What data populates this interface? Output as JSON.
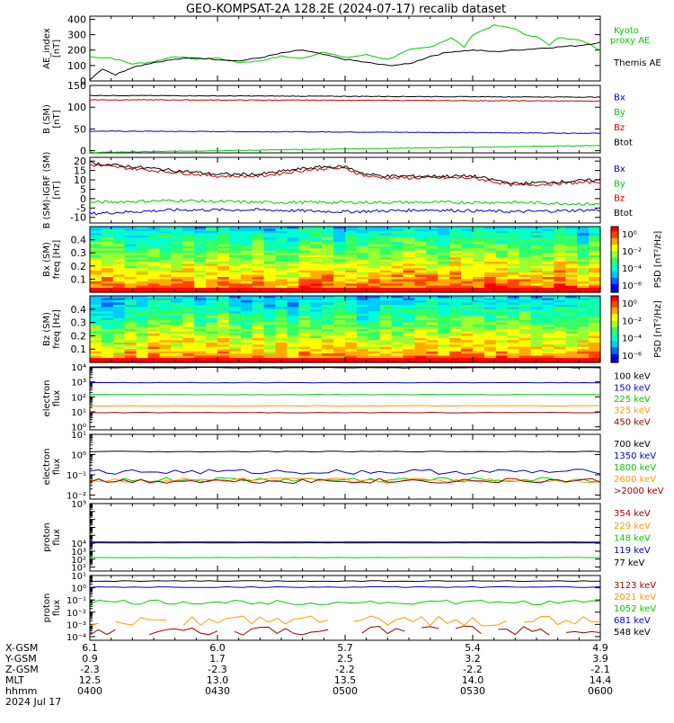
{
  "title": "GEO-KOMPSAT-2A 128.2E (2024-07-17) recalib dataset",
  "time_axis": {
    "row_labels": [
      "X-GSM",
      "Y-GSM",
      "Z-GSM",
      "MLT",
      "hhmm",
      "2024 Jul 17"
    ],
    "columns": [
      {
        "x": "6.1",
        "y": "0.9",
        "z": "-2.3",
        "mlt": "12.5",
        "hhmm": "0400"
      },
      {
        "x": "6.0",
        "y": "1.7",
        "z": "-2.3",
        "mlt": "13.0",
        "hhmm": "0430"
      },
      {
        "x": "5.7",
        "y": "2.5",
        "z": "-2.2",
        "mlt": "13.5",
        "hhmm": "0500"
      },
      {
        "x": "5.4",
        "y": "3.2",
        "z": "-2.2",
        "mlt": "14.0",
        "hhmm": "0530"
      },
      {
        "x": "4.9",
        "y": "3.9",
        "z": "-2.1",
        "mlt": "14.4",
        "hhmm": "0600"
      }
    ]
  },
  "chart_data": [
    {
      "id": "ae",
      "type": "line",
      "ylabel": [
        "AE_index",
        "[nT]"
      ],
      "ylim": [
        0,
        400
      ],
      "yticks": [
        "0",
        "100",
        "200",
        "300",
        "400"
      ],
      "yscale": "linear",
      "x_range_minutes": [
        0,
        120
      ],
      "series": [
        {
          "name": "Kyoto proxy AE",
          "color": "#00cc00",
          "x": [
            0,
            5,
            10,
            15,
            20,
            25,
            30,
            35,
            40,
            45,
            50,
            55,
            60,
            65,
            70,
            75,
            80,
            85,
            88,
            90,
            95,
            100,
            102,
            105,
            108,
            110,
            115,
            120
          ],
          "values": [
            155,
            150,
            110,
            125,
            160,
            140,
            150,
            120,
            130,
            160,
            145,
            190,
            150,
            170,
            140,
            200,
            220,
            280,
            220,
            300,
            360,
            340,
            300,
            290,
            230,
            280,
            270,
            200
          ]
        },
        {
          "name": "Themis AE",
          "color": "#000000",
          "x": [
            0,
            3,
            6,
            10,
            15,
            20,
            25,
            30,
            35,
            40,
            45,
            50,
            55,
            60,
            65,
            70,
            75,
            80,
            85,
            90,
            95,
            100,
            105,
            110,
            115,
            120
          ],
          "values": [
            10,
            80,
            40,
            90,
            120,
            140,
            150,
            140,
            130,
            150,
            180,
            200,
            170,
            140,
            120,
            100,
            110,
            160,
            190,
            200,
            190,
            200,
            210,
            220,
            230,
            250
          ]
        }
      ],
      "legend": [
        {
          "text": "Kyoto",
          "color": "#00cc00"
        },
        {
          "text": "proxy AE",
          "color": "#00cc00"
        },
        {
          "text": "Themis AE",
          "color": "#000000"
        }
      ]
    },
    {
      "id": "bsm",
      "type": "line",
      "ylabel": [
        "B (SM)",
        "[nT]"
      ],
      "ylim": [
        -5,
        150
      ],
      "yticks": [
        "0",
        "50",
        "100",
        "150"
      ],
      "ytick_values": [
        0,
        50,
        100,
        150
      ],
      "yscale": "linear",
      "series": [
        {
          "name": "Bx",
          "color": "#0000cc",
          "x": [
            0,
            60,
            120
          ],
          "values": [
            45,
            43,
            40
          ]
        },
        {
          "name": "By",
          "color": "#00cc00",
          "x": [
            0,
            60,
            120
          ],
          "values": [
            -4,
            4,
            12
          ]
        },
        {
          "name": "Bz",
          "color": "#cc0000",
          "x": [
            0,
            60,
            120
          ],
          "values": [
            117,
            116,
            114
          ]
        },
        {
          "name": "Btot",
          "color": "#000000",
          "x": [
            0,
            60,
            120
          ],
          "values": [
            127,
            125,
            123
          ]
        }
      ],
      "legend": [
        {
          "text": "Bx",
          "color": "#0000cc"
        },
        {
          "text": "By",
          "color": "#00cc00"
        },
        {
          "text": "Bz",
          "color": "#cc0000"
        },
        {
          "text": "Btot",
          "color": "#000000"
        }
      ]
    },
    {
      "id": "bdiff",
      "type": "line",
      "ylabel": [
        "B (SM)-IGRF (SM)",
        "[nT]"
      ],
      "ylim": [
        -13,
        22
      ],
      "yticks": [
        "-10",
        "-5",
        "0",
        "5",
        "10",
        "15",
        "20"
      ],
      "ytick_values": [
        -10,
        -5,
        0,
        5,
        10,
        15,
        20
      ],
      "yscale": "linear",
      "series": [
        {
          "name": "Bx",
          "color": "#0000cc",
          "x": [
            0,
            20,
            40,
            60,
            80,
            100,
            120
          ],
          "values": [
            -8,
            -6,
            -6,
            -7,
            -6,
            -7,
            -6
          ]
        },
        {
          "name": "By",
          "color": "#00cc00",
          "x": [
            0,
            20,
            40,
            60,
            80,
            100,
            120
          ],
          "values": [
            -2,
            -1,
            -2,
            -2,
            -2,
            -2,
            -3
          ]
        },
        {
          "name": "Bz",
          "color": "#cc0000",
          "x": [
            0,
            10,
            20,
            30,
            40,
            50,
            55,
            60,
            65,
            70,
            80,
            90,
            100,
            110,
            120
          ],
          "values": [
            18,
            16,
            14,
            12,
            12,
            15,
            16,
            16,
            12,
            11,
            11,
            11,
            7,
            8,
            9
          ]
        },
        {
          "name": "Btot",
          "color": "#000000",
          "x": [
            0,
            10,
            20,
            30,
            40,
            50,
            55,
            60,
            65,
            70,
            80,
            90,
            100,
            110,
            120
          ],
          "values": [
            19,
            17,
            15,
            13,
            13,
            16,
            17,
            17,
            13,
            12,
            12,
            12,
            8,
            9,
            10
          ]
        }
      ],
      "legend": [
        {
          "text": "Bx",
          "color": "#0000cc"
        },
        {
          "text": "By",
          "color": "#00cc00"
        },
        {
          "text": "Bz",
          "color": "#cc0000"
        },
        {
          "text": "Btot",
          "color": "#000000"
        }
      ]
    },
    {
      "id": "bx_spec",
      "type": "heatmap",
      "ylabel": [
        "Bx (SM)",
        "freq [Hz]"
      ],
      "ylim": [
        0,
        0.5
      ],
      "yticks": [
        "0.1",
        "0.2",
        "0.3",
        "0.4"
      ],
      "ytick_values": [
        0.1,
        0.2,
        0.3,
        0.4
      ],
      "colorbar": {
        "label": "PSD [nT²/Hz]",
        "ticks": [
          "10⁰",
          "10⁻²",
          "10⁻⁴",
          "10⁻⁶"
        ],
        "ticks_full": [
          "10⁰",
          "10⁻²",
          "10⁻⁴",
          "10⁻⁶"
        ]
      }
    },
    {
      "id": "bz_spec",
      "type": "heatmap",
      "ylabel": [
        "Bz (SM)",
        "freq [Hz]"
      ],
      "ylim": [
        0,
        0.5
      ],
      "yticks": [
        "0.1",
        "0.2",
        "0.3",
        "0.4"
      ],
      "ytick_values": [
        0.1,
        0.2,
        0.3,
        0.4
      ],
      "colorbar": {
        "label": "PSD [nT²/Hz]",
        "ticks": [
          "10⁰",
          "10⁻²",
          "10⁻⁴",
          "10⁻⁶"
        ]
      }
    },
    {
      "id": "e_low",
      "type": "line",
      "ylabel": [
        "electron",
        "flux"
      ],
      "yscale": "log",
      "ylim_log": [
        -0.2,
        4
      ],
      "yticks": [
        "10⁰",
        "10¹",
        "10²",
        "10³",
        "10⁴"
      ],
      "ytick_exp": [
        0,
        1,
        2,
        3,
        4
      ],
      "series": [
        {
          "name": "100 keV",
          "color": "#000000",
          "values_log": 3.95
        },
        {
          "name": "150 keV",
          "color": "#0000cc",
          "values_log": 2.95
        },
        {
          "name": "225 keV",
          "color": "#00cc00",
          "values_log": 2.15
        },
        {
          "name": "325 keV",
          "color": "#ff9900",
          "values_log": 1.4
        },
        {
          "name": "450 keV",
          "color": "#990000",
          "values_log": 0.95
        }
      ]
    },
    {
      "id": "e_high",
      "type": "line",
      "ylabel": [
        "electron",
        "flux"
      ],
      "yscale": "log",
      "ylim_log": [
        -2.2,
        1
      ],
      "yticks": [
        "10⁻²",
        "10⁻¹",
        "10⁰",
        "10¹"
      ],
      "ytick_exp": [
        -2,
        -1,
        0,
        1
      ],
      "series": [
        {
          "name": "700 keV",
          "color": "#000000",
          "values_log": 0.15
        },
        {
          "name": "1350 keV",
          "color": "#0000cc",
          "values_log": -0.85
        },
        {
          "name": "1800 keV",
          "color": "#00cc00",
          "values_log": -1.25
        },
        {
          "name": "2600 keV",
          "color": "#ff9900",
          "values_log": -1.28
        },
        {
          "name": ">2000 keV",
          "color": "#990000",
          "values_log": -1.3
        }
      ]
    },
    {
      "id": "p_low",
      "type": "line",
      "ylabel": [
        "proton",
        "flux"
      ],
      "yscale": "log",
      "ylim_log": [
        0.5,
        9
      ],
      "yticks": [
        "10¹",
        "10²",
        "10³",
        "10⁴",
        "10⁵",
        "10⁶",
        "10⁷",
        "10⁸",
        "10⁹"
      ],
      "ytick_exp": [
        1,
        2,
        3,
        4,
        5,
        6,
        7,
        8,
        9
      ],
      "yticks_shown": [
        "10¹",
        "10²",
        "10³",
        "10⁴",
        "10⁹"
      ],
      "series": [
        {
          "name": "354 keV",
          "color": "#990000",
          "values_log": 4.1
        },
        {
          "name": "229 keV",
          "color": "#ff9900",
          "values_log": 4.08
        },
        {
          "name": "148 keV",
          "color": "#00cc00",
          "values_log": 2.2
        },
        {
          "name": "119 keV",
          "color": "#0000cc",
          "values_log": 4.05
        },
        {
          "name": "77 keV",
          "color": "#000000",
          "values_log": 4.15
        }
      ]
    },
    {
      "id": "p_high",
      "type": "line",
      "ylabel": [
        "proton",
        "flux"
      ],
      "yscale": "log",
      "ylim_log": [
        -4.3,
        1
      ],
      "yticks": [
        "10⁻⁴",
        "10⁻³",
        "10⁻²",
        "10⁻¹",
        "10⁰",
        "10¹"
      ],
      "ytick_exp": [
        -4,
        -3,
        -2,
        -1,
        0,
        1
      ],
      "series": [
        {
          "name": "3123 keV",
          "color": "#990000",
          "values_log": -3.5
        },
        {
          "name": "2021 keV",
          "color": "#ff9900",
          "values_log": -2.7
        },
        {
          "name": "1052 keV",
          "color": "#00cc00",
          "values_log": -1.2
        },
        {
          "name": "681 keV",
          "color": "#0000cc",
          "values_log": 0.05
        },
        {
          "name": "548 keV",
          "color": "#000000",
          "values_log": 0.55
        }
      ]
    }
  ]
}
